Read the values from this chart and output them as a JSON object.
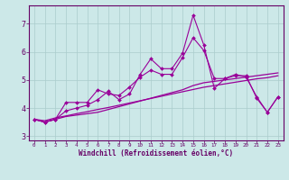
{
  "xlabel": "Windchill (Refroidissement éolien,°C)",
  "ylabel": "",
  "background_color": "#cce8e8",
  "grid_color": "#aacccc",
  "line_color": "#990099",
  "xlim": [
    -0.5,
    23.5
  ],
  "ylim": [
    2.85,
    7.65
  ],
  "xticks": [
    0,
    1,
    2,
    3,
    4,
    5,
    6,
    7,
    8,
    9,
    10,
    11,
    12,
    13,
    14,
    15,
    16,
    17,
    18,
    19,
    20,
    21,
    22,
    23
  ],
  "yticks": [
    3,
    4,
    5,
    6,
    7
  ],
  "series": [
    [
      3.6,
      3.5,
      3.6,
      3.9,
      4.0,
      4.1,
      4.3,
      4.6,
      4.3,
      4.5,
      5.2,
      5.75,
      5.4,
      5.4,
      5.95,
      7.3,
      6.25,
      4.7,
      5.05,
      5.15,
      5.15,
      4.35,
      3.85,
      4.4
    ],
    [
      3.6,
      3.5,
      3.6,
      4.2,
      4.2,
      4.2,
      4.65,
      4.5,
      4.45,
      4.75,
      5.1,
      5.35,
      5.2,
      5.2,
      5.8,
      6.5,
      6.05,
      5.05,
      5.05,
      5.2,
      5.1,
      4.4,
      3.85,
      4.4
    ],
    [
      3.6,
      3.5,
      3.6,
      3.7,
      3.75,
      3.8,
      3.85,
      3.95,
      4.05,
      4.15,
      4.25,
      4.35,
      4.45,
      4.55,
      4.65,
      4.8,
      4.9,
      4.95,
      5.0,
      5.05,
      5.1,
      5.15,
      5.2,
      5.25
    ],
    [
      3.6,
      3.55,
      3.65,
      3.72,
      3.8,
      3.87,
      3.95,
      4.02,
      4.1,
      4.18,
      4.26,
      4.34,
      4.42,
      4.5,
      4.58,
      4.66,
      4.74,
      4.8,
      4.86,
      4.92,
      4.98,
      5.04,
      5.08,
      5.15
    ]
  ],
  "marker_series": [
    0,
    1
  ],
  "smooth_series": [
    2,
    3
  ]
}
